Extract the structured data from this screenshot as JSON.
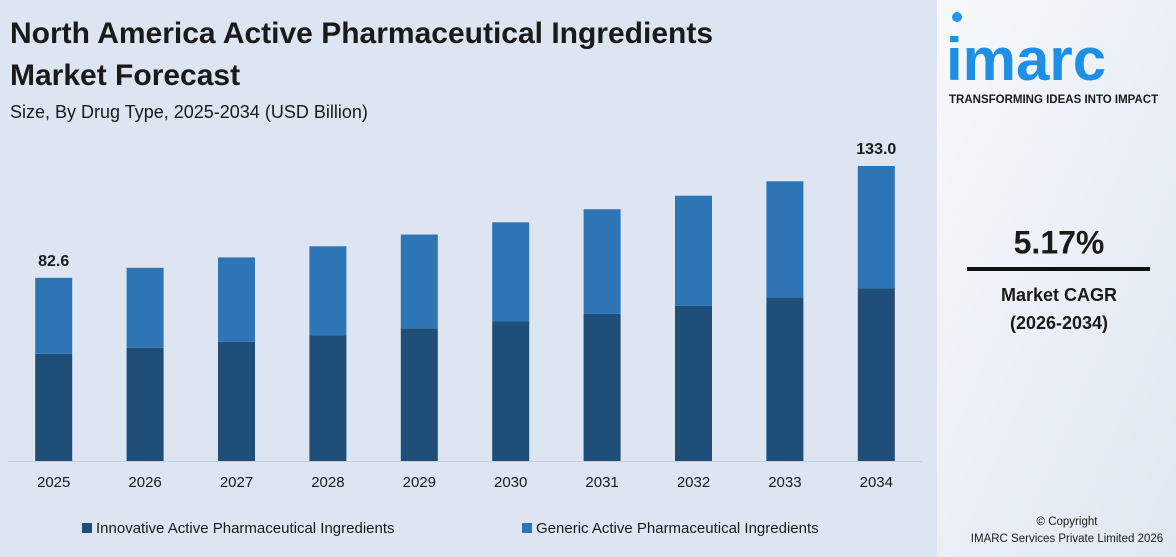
{
  "chart_data": {
    "type": "stacked-bar",
    "title": "North America Active Pharmaceutical Ingredients",
    "title_line2": "Market Forecast",
    "subtitle": "Size, By Drug Type, 2025-2034 (USD Billion)",
    "categories": [
      "2025",
      "2026",
      "2027",
      "2028",
      "2029",
      "2030",
      "2031",
      "2032",
      "2033",
      "2034"
    ],
    "series": [
      {
        "name": "Innovative Active Pharmaceutical Ingredients",
        "color": "#1f4e79",
        "values": [
          48.3,
          51.0,
          53.7,
          56.6,
          59.7,
          62.9,
          66.4,
          70.0,
          73.8,
          77.8
        ]
      },
      {
        "name": "Generic Active Pharmaceutical Ingredients",
        "color": "#2e75b6",
        "values": [
          34.3,
          36.1,
          38.1,
          40.2,
          42.4,
          44.7,
          47.1,
          49.6,
          52.3,
          55.2
        ]
      }
    ],
    "total_labels": [
      {
        "category": "2025",
        "value": 82.6,
        "label": "82.6"
      },
      {
        "category": "2034",
        "value": 133.0,
        "label": "133.0"
      }
    ]
  },
  "sidebar": {
    "logo": "imarc",
    "tagline": "TRANSFORMING IDEAS INTO IMPACT",
    "cagr": "5.17%",
    "cagr_label": "Market CAGR",
    "cagr_period": "(2026-2034)",
    "copyright": "© Copyright",
    "company": "IMARC Services Private Limited 2026"
  }
}
